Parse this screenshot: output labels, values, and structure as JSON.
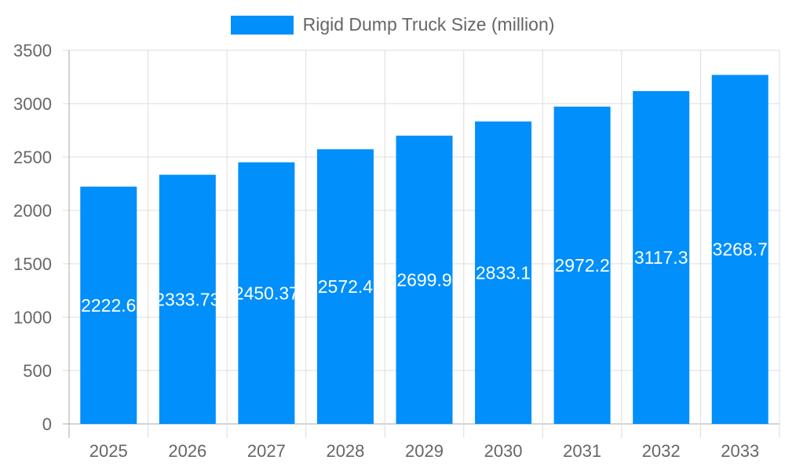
{
  "chart_data": {
    "type": "bar",
    "title": "",
    "xlabel": "",
    "ylabel": "",
    "categories": [
      "2025",
      "2026",
      "2027",
      "2028",
      "2029",
      "2030",
      "2031",
      "2032",
      "2033"
    ],
    "series": [
      {
        "name": "Rigid Dump Truck Size (million)",
        "values": [
          2222.6,
          2333.73,
          2450.37,
          2572.4,
          2699.9,
          2833.1,
          2972.2,
          3117.3,
          3268.7
        ],
        "color": "#008ffb"
      }
    ],
    "ylim": [
      0,
      3500
    ],
    "yticks": [
      0,
      500,
      1000,
      1500,
      2000,
      2500,
      3000,
      3500
    ],
    "grid": true,
    "legend": "top-center",
    "data_labels": true
  }
}
